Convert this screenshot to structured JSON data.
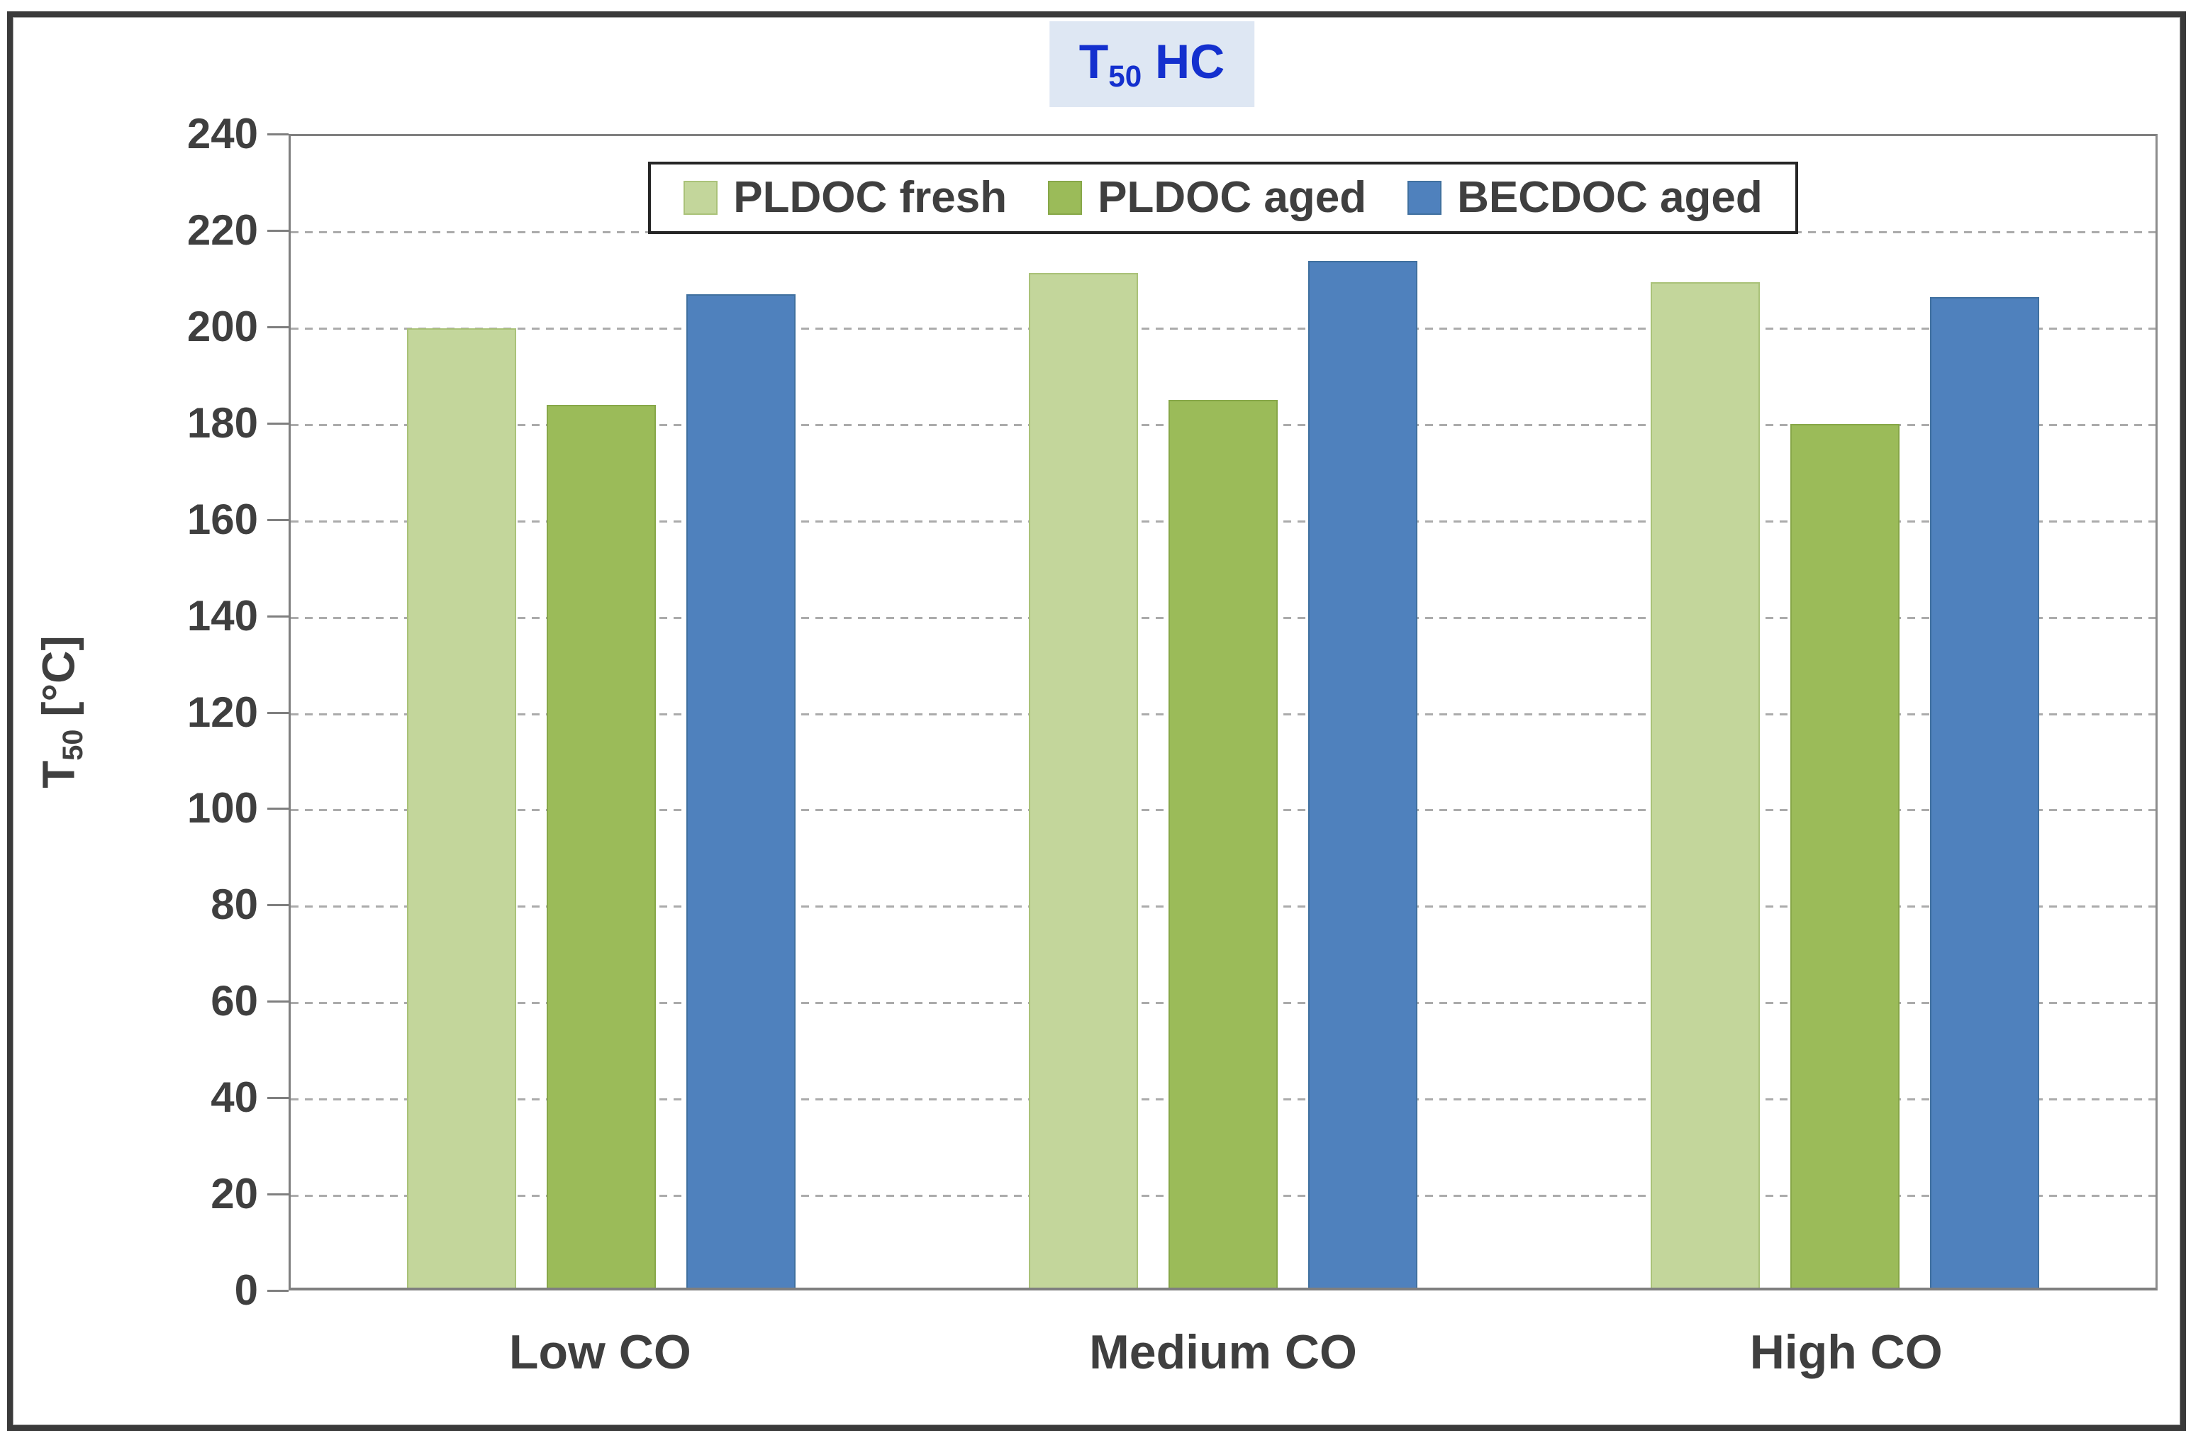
{
  "title": {
    "t": "T",
    "sub": "50",
    "rest": " HC"
  },
  "y_axis_title": {
    "t": "T",
    "sub": "50",
    "rest": " [°C]"
  },
  "chart_data": {
    "type": "bar",
    "title": "T50 HC",
    "categories": [
      "Low CO",
      "Medium CO",
      "High CO"
    ],
    "series": [
      {
        "name": "PLDOC fresh",
        "color": "#c3d69b",
        "border_color": "#aac279",
        "values": [
          200,
          211.5,
          209.5
        ]
      },
      {
        "name": "PLDOC aged",
        "color": "#9bbb59",
        "border_color": "#87a748",
        "values": [
          184,
          185,
          180
        ]
      },
      {
        "name": "BECDOC aged",
        "color": "#4f81bd",
        "border_color": "#40709f",
        "values": [
          207,
          214,
          206.5
        ]
      }
    ],
    "xlabel": "",
    "ylabel": "T50 [°C]",
    "ylim": [
      0,
      240
    ],
    "ytick_step": 20,
    "yticks": [
      0,
      20,
      40,
      60,
      80,
      100,
      120,
      140,
      160,
      180,
      200,
      220,
      240
    ],
    "grid": "horizontal-dashed",
    "legend_position": "top-center-inside"
  },
  "colors": {
    "title_text": "#1430ce",
    "title_bg": "#dee7f3",
    "axis_line": "#7f7f7f",
    "gridline": "#ababab",
    "label_text": "#3f3f3f",
    "legend_border": "#262626",
    "outer_frame": "#3a3a3a"
  }
}
